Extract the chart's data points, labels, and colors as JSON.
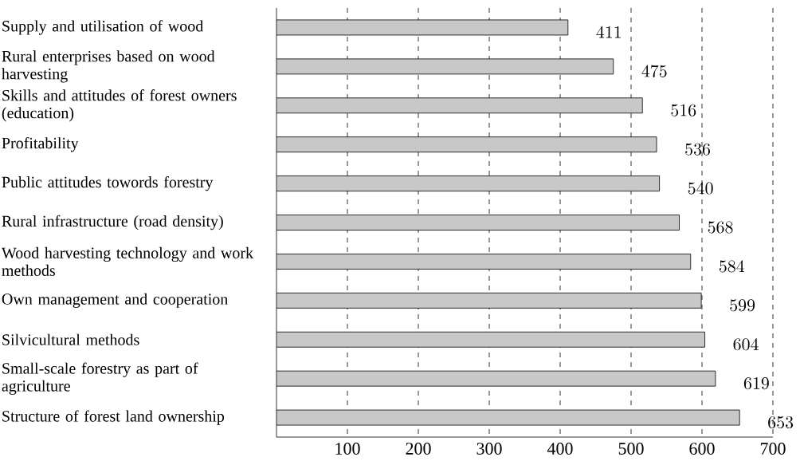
{
  "chart_data": {
    "type": "bar",
    "orientation": "horizontal",
    "categories": [
      "Supply and utilisation of wood",
      "Rural enterprises based on wood harvesting",
      "Skills and attitudes of forest owners (education)",
      "Profitability",
      "Public attitudes towords forestry",
      "Rural infrastructure (road density)",
      "Wood harvesting technology and work methods",
      "Own management and cooperation",
      "Silvicultural methods",
      "Small-scale forestry as part of agriculture",
      "Structure of forest land ownership"
    ],
    "values": [
      411,
      475,
      516,
      536,
      540,
      568,
      584,
      599,
      604,
      619,
      653
    ],
    "color": "#c8c8c8",
    "xlim": [
      0,
      700
    ],
    "xticks": [
      100,
      200,
      300,
      400,
      500,
      600,
      700
    ],
    "grid": "x",
    "data_labels": true
  }
}
